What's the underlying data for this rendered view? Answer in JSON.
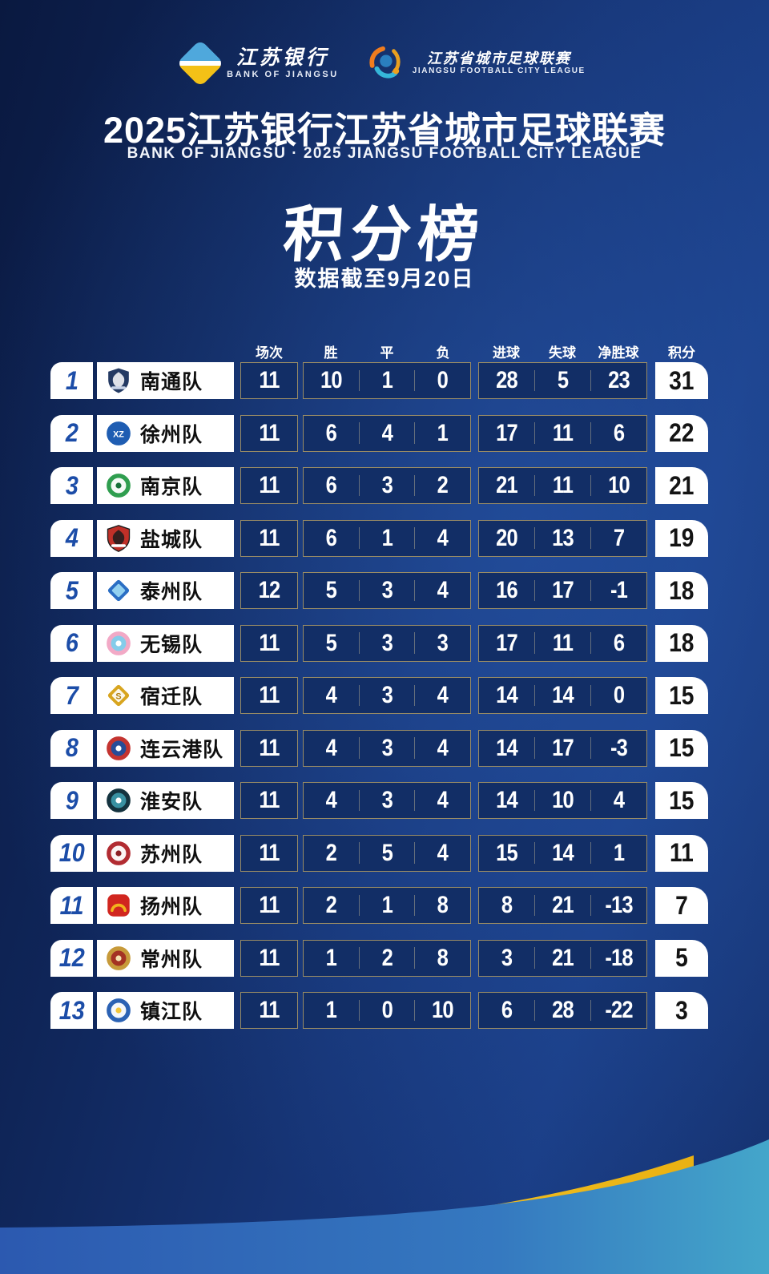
{
  "header": {
    "bank_logo": {
      "cn": "江苏银行",
      "en": "BANK OF JIANGSU"
    },
    "league_logo": {
      "cn": "江苏省城市足球联赛",
      "en": "JIANGSU FOOTBALL CITY LEAGUE"
    },
    "title": "2025江苏银行江苏省城市足球联赛",
    "subtitle": "BANK OF JIANGSU · 2025 JIANGSU FOOTBALL CITY LEAGUE",
    "section_title": "积分榜",
    "data_cutoff": "数据截至9月20日"
  },
  "colors": {
    "background_navy": "#122e66",
    "cell_border_gold": "#baa265",
    "rank_blue": "#1c4da8",
    "swoosh_yellow": "#efb91c",
    "swoosh_blue_left": "#2c59b0",
    "swoosh_blue_right": "#44a6ca"
  },
  "chart_data": {
    "type": "table",
    "title": "积分榜",
    "subtitle": "数据截至9月20日",
    "columns": [
      "场次",
      "胜",
      "平",
      "负",
      "进球",
      "失球",
      "净胜球",
      "积分"
    ],
    "teams": [
      {
        "rank": 1,
        "name": "南通队",
        "played": 11,
        "won": 10,
        "drawn": 1,
        "lost": 0,
        "goals_for": 28,
        "goals_against": 5,
        "goal_diff": 23,
        "points": 31,
        "logo": {
          "shape": "shield",
          "primary": "#243a63",
          "secondary": "#ffffff",
          "accent": "#c9d4e8"
        }
      },
      {
        "rank": 2,
        "name": "徐州队",
        "played": 11,
        "won": 6,
        "drawn": 4,
        "lost": 1,
        "goals_for": 17,
        "goals_against": 11,
        "goal_diff": 6,
        "points": 22,
        "logo": {
          "shape": "circle",
          "primary": "#1f5db2",
          "secondary": "#123c7a",
          "accent": "#ffffff",
          "monogram": "XZ"
        }
      },
      {
        "rank": 3,
        "name": "南京队",
        "played": 11,
        "won": 6,
        "drawn": 3,
        "lost": 2,
        "goals_for": 21,
        "goals_against": 11,
        "goal_diff": 10,
        "points": 21,
        "logo": {
          "shape": "circle",
          "primary": "#2f9e4f",
          "secondary": "#ffffff",
          "accent": "#17703a"
        }
      },
      {
        "rank": 4,
        "name": "盐城队",
        "played": 11,
        "won": 6,
        "drawn": 1,
        "lost": 4,
        "goals_for": 20,
        "goals_against": 13,
        "goal_diff": 7,
        "points": 19,
        "logo": {
          "shape": "shield",
          "primary": "#c03028",
          "secondary": "#1c1c1c",
          "accent": "#ffffff"
        }
      },
      {
        "rank": 5,
        "name": "泰州队",
        "played": 12,
        "won": 5,
        "drawn": 3,
        "lost": 4,
        "goals_for": 16,
        "goals_against": 17,
        "goal_diff": -1,
        "points": 18,
        "logo": {
          "shape": "diamond",
          "primary": "#2a6ec4",
          "secondary": "#9fdcf5",
          "accent": "#ffffff"
        }
      },
      {
        "rank": 6,
        "name": "无锡队",
        "played": 11,
        "won": 5,
        "drawn": 3,
        "lost": 3,
        "goals_for": 17,
        "goals_against": 11,
        "goal_diff": 6,
        "points": 18,
        "logo": {
          "shape": "circle",
          "primary": "#f2a9c6",
          "secondary": "#7ecdec",
          "accent": "#ffffff"
        }
      },
      {
        "rank": 7,
        "name": "宿迁队",
        "played": 11,
        "won": 4,
        "drawn": 3,
        "lost": 4,
        "goals_for": 14,
        "goals_against": 14,
        "goal_diff": 0,
        "points": 15,
        "logo": {
          "shape": "diamond",
          "primary": "#d8a51f",
          "secondary": "#ffffff",
          "accent": "#b07f10",
          "monogram": "S"
        }
      },
      {
        "rank": 8,
        "name": "连云港队",
        "played": 11,
        "won": 4,
        "drawn": 3,
        "lost": 4,
        "goals_for": 14,
        "goals_against": 17,
        "goal_diff": -3,
        "points": 15,
        "logo": {
          "shape": "circle",
          "primary": "#c43430",
          "secondary": "#1e4e9e",
          "accent": "#ffffff"
        }
      },
      {
        "rank": 9,
        "name": "淮安队",
        "played": 11,
        "won": 4,
        "drawn": 3,
        "lost": 4,
        "goals_for": 14,
        "goals_against": 10,
        "goal_diff": 4,
        "points": 15,
        "logo": {
          "shape": "circle",
          "primary": "#14333f",
          "secondary": "#3b97a8",
          "accent": "#ffffff"
        }
      },
      {
        "rank": 10,
        "name": "苏州队",
        "played": 11,
        "won": 2,
        "drawn": 5,
        "lost": 4,
        "goals_for": 15,
        "goals_against": 14,
        "goal_diff": 1,
        "points": 11,
        "logo": {
          "shape": "circle",
          "primary": "#b22c32",
          "secondary": "#ffffff",
          "accent": "#8c1f24"
        }
      },
      {
        "rank": 11,
        "name": "扬州队",
        "played": 11,
        "won": 2,
        "drawn": 1,
        "lost": 8,
        "goals_for": 8,
        "goals_against": 21,
        "goal_diff": -13,
        "points": 7,
        "logo": {
          "shape": "rounded-square",
          "primary": "#d1261f",
          "secondary": "#f2b31c",
          "accent": "#ffffff"
        }
      },
      {
        "rank": 12,
        "name": "常州队",
        "played": 11,
        "won": 1,
        "drawn": 2,
        "lost": 8,
        "goals_for": 3,
        "goals_against": 21,
        "goal_diff": -18,
        "points": 5,
        "logo": {
          "shape": "circle",
          "primary": "#c79a3a",
          "secondary": "#a22c22",
          "accent": "#f4e2b0"
        }
      },
      {
        "rank": 13,
        "name": "镇江队",
        "played": 11,
        "won": 1,
        "drawn": 0,
        "lost": 10,
        "goals_for": 6,
        "goals_against": 28,
        "goal_diff": -22,
        "points": 3,
        "logo": {
          "shape": "circle",
          "primary": "#2b62b4",
          "secondary": "#ffffff",
          "accent": "#f4c63a"
        }
      }
    ]
  }
}
